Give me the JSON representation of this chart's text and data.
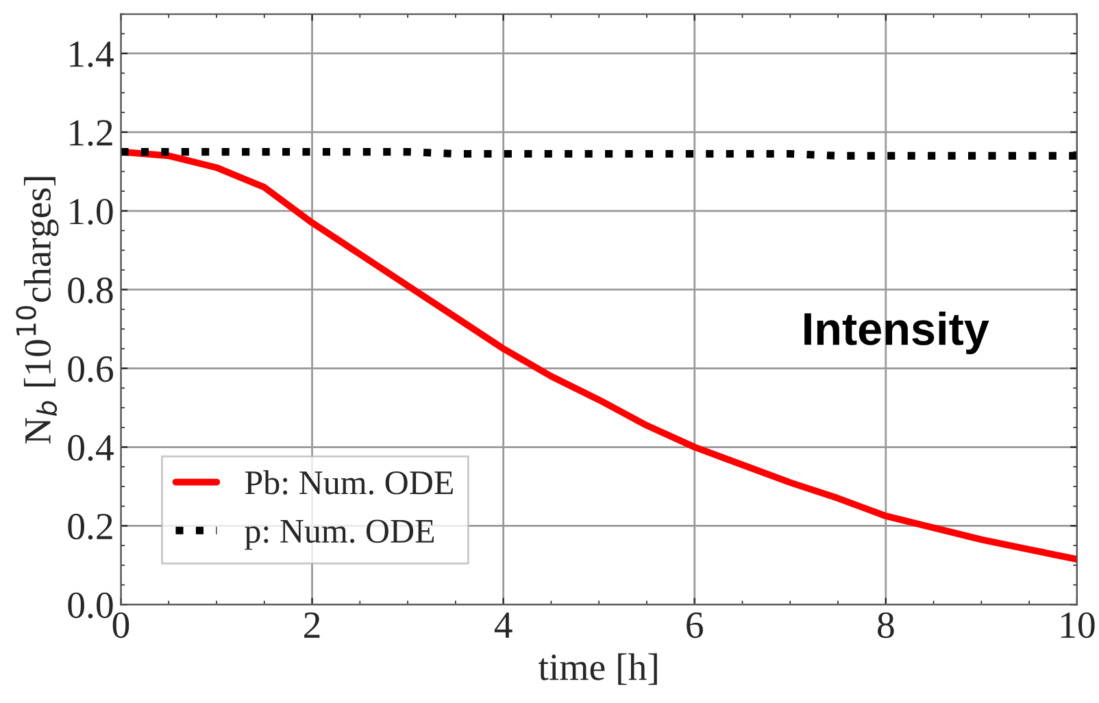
{
  "chart_data": {
    "type": "line",
    "xlabel": "time [h]",
    "ylabel": "N$_{b}$ [10$^{10}$charges]",
    "x": [
      0,
      0.5,
      1,
      1.5,
      2,
      2.5,
      3,
      3.5,
      4,
      4.5,
      5,
      5.5,
      6,
      6.5,
      7,
      7.5,
      8,
      8.5,
      9,
      9.5,
      10
    ],
    "series": [
      {
        "name": "Pb: Num. ODE",
        "color": "#ff0000",
        "line_style": "solid",
        "values": [
          1.15,
          1.14,
          1.11,
          1.06,
          0.97,
          0.89,
          0.81,
          0.73,
          0.65,
          0.58,
          0.52,
          0.455,
          0.4,
          0.355,
          0.31,
          0.27,
          0.225,
          0.195,
          0.165,
          0.14,
          0.115
        ]
      },
      {
        "name": "p: Num. ODE",
        "color": "#000000",
        "line_style": "dotted",
        "values": [
          1.15,
          1.15,
          1.15,
          1.15,
          1.15,
          1.15,
          1.15,
          1.145,
          1.145,
          1.145,
          1.145,
          1.145,
          1.145,
          1.145,
          1.145,
          1.14,
          1.14,
          1.14,
          1.14,
          1.14,
          1.14
        ]
      }
    ],
    "annotations": [
      "Intensity"
    ],
    "xlim": [
      0,
      10
    ],
    "ylim": [
      0,
      1.5
    ],
    "xticks": [
      0,
      2,
      4,
      6,
      8,
      10
    ],
    "yticks": [
      {
        "value": 0,
        "label": "0.0"
      },
      0.2,
      0.4,
      0.6,
      0.8,
      {
        "value": 1.0,
        "label": "1.0"
      },
      1.2,
      1.4
    ],
    "grid": true,
    "legend": "bottom left"
  }
}
